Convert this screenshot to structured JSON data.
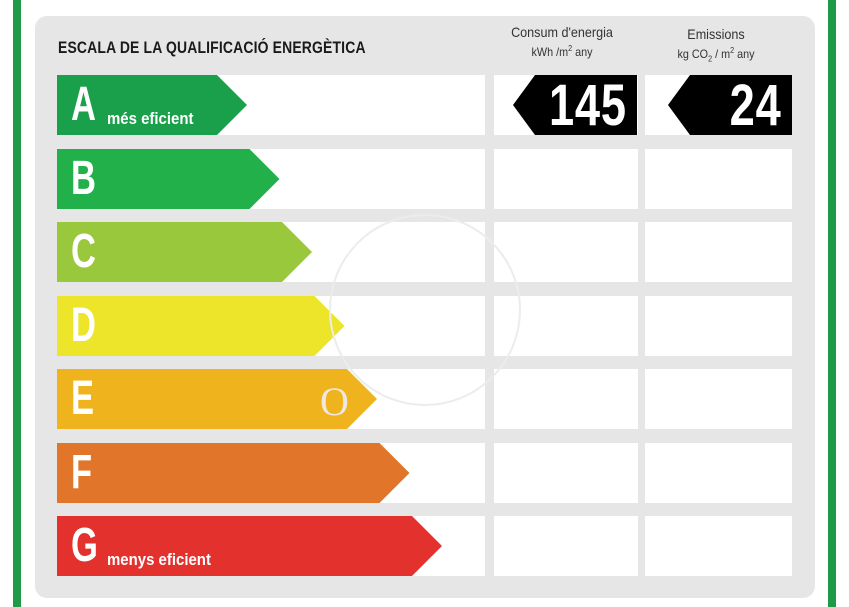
{
  "title": "ESCALA DE LA QUALIFICACIÓ ENERGÈTICA",
  "consumption_header": {
    "line1": "Consum d'energia",
    "line2_prefix": "kWh /m",
    "line2_sup": "2",
    "line2_suffix": " any"
  },
  "emissions_header": {
    "line1": "Emissions",
    "line2_prefix": "kg CO",
    "line2_sub": "2",
    "line2_mid": " / m",
    "line2_sup": "2",
    "line2_suffix": " any"
  },
  "ratings": [
    {
      "letter": "A",
      "label": "més eficient",
      "color": "#1aa04a"
    },
    {
      "letter": "B",
      "label": "",
      "color": "#22b04b"
    },
    {
      "letter": "C",
      "label": "",
      "color": "#99c83c"
    },
    {
      "letter": "D",
      "label": "",
      "color": "#ece52a"
    },
    {
      "letter": "E",
      "label": "",
      "color": "#efb31e"
    },
    {
      "letter": "F",
      "label": "",
      "color": "#e1762b"
    },
    {
      "letter": "G",
      "label": "menys eficient",
      "color": "#e3312d"
    }
  ],
  "selected": {
    "rating": "A",
    "consumption_value": "145",
    "emissions_value": "24"
  },
  "frame_color": "#1f9a49"
}
